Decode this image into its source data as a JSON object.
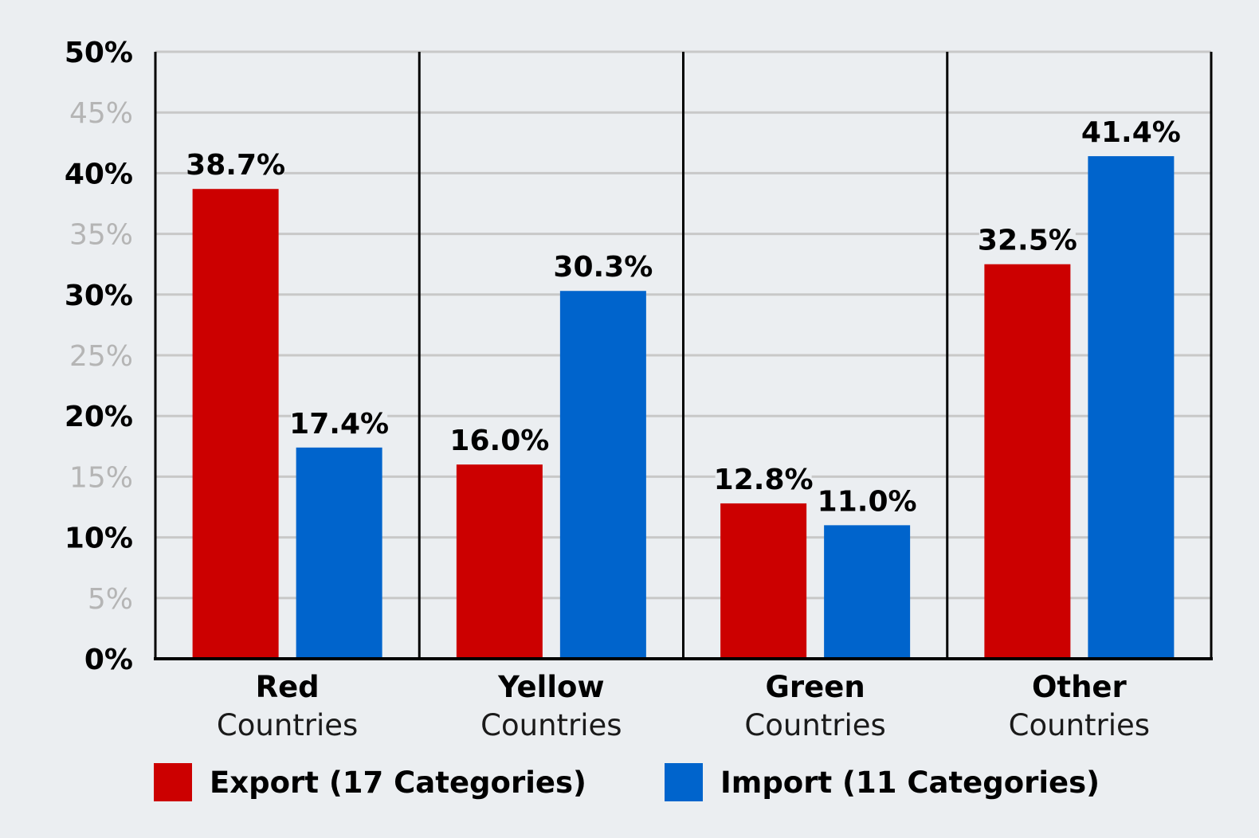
{
  "chart_data": {
    "type": "bar",
    "categories": [
      {
        "main": "Red",
        "sub": "Countries"
      },
      {
        "main": "Yellow",
        "sub": "Countries"
      },
      {
        "main": "Green",
        "sub": "Countries"
      },
      {
        "main": "Other",
        "sub": "Countries"
      }
    ],
    "series": [
      {
        "name": "Export (17 Categories)",
        "color": "#cc0000",
        "values": [
          38.7,
          16.0,
          12.8,
          32.5
        ],
        "labels": [
          "38.7%",
          "16.0%",
          "12.8%",
          "32.5%"
        ]
      },
      {
        "name": "Import (11 Categories)",
        "color": "#0064cc",
        "values": [
          17.4,
          30.3,
          11.0,
          41.4
        ],
        "labels": [
          "17.4%",
          "30.3%",
          "11.0%",
          "41.4%"
        ]
      }
    ],
    "ylim": [
      0,
      50
    ],
    "yticks": [
      {
        "value": 0,
        "label": "0%",
        "emphasis": true
      },
      {
        "value": 5,
        "label": "5%",
        "emphasis": false
      },
      {
        "value": 10,
        "label": "10%",
        "emphasis": true
      },
      {
        "value": 15,
        "label": "15%",
        "emphasis": false
      },
      {
        "value": 20,
        "label": "20%",
        "emphasis": true
      },
      {
        "value": 25,
        "label": "25%",
        "emphasis": false
      },
      {
        "value": 30,
        "label": "30%",
        "emphasis": true
      },
      {
        "value": 35,
        "label": "35%",
        "emphasis": false
      },
      {
        "value": 40,
        "label": "40%",
        "emphasis": true
      },
      {
        "value": 45,
        "label": "45%",
        "emphasis": false
      },
      {
        "value": 50,
        "label": "50%",
        "emphasis": true
      }
    ],
    "grid": true,
    "legend_position": "bottom",
    "gridline_color": "#c8c8c8",
    "axis_color": "#000000",
    "background_color": "#ebeef1"
  }
}
